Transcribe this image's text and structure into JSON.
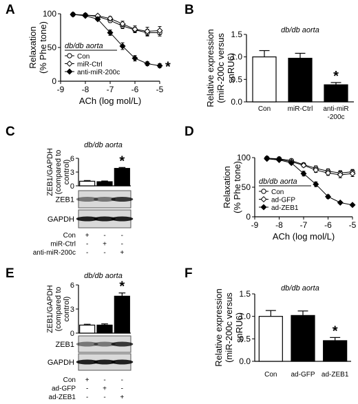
{
  "chart_data": [
    {
      "panel": "A",
      "type": "line",
      "title": "db/db aorta",
      "xlabel": "ACh (log mol/L)",
      "ylabel": "Relaxation (% Phe tone)",
      "xlim": [
        -9,
        -5
      ],
      "ylim": [
        0,
        100
      ],
      "xticks": [
        "-9",
        "-8",
        "-7",
        "-6",
        "-5"
      ],
      "yticks": [
        "0",
        "50",
        "100"
      ],
      "x": [
        -8.5,
        -8,
        -7.5,
        -7,
        -6.5,
        -6,
        -5.5,
        -5
      ],
      "series": [
        {
          "name": "Con",
          "marker": "open-circle",
          "values": [
            99,
            98,
            96,
            90,
            82,
            76,
            72,
            72
          ],
          "err": [
            1,
            1,
            2,
            3,
            4,
            4,
            5,
            5
          ]
        },
        {
          "name": "miR-Ctrl",
          "marker": "open-diamond",
          "values": [
            99,
            98,
            97,
            93,
            85,
            77,
            74,
            75
          ],
          "err": [
            1,
            1,
            2,
            3,
            4,
            5,
            6,
            6
          ]
        },
        {
          "name": "anti-miR-200c",
          "marker": "filled-diamond",
          "values": [
            99,
            97,
            92,
            72,
            52,
            34,
            26,
            23
          ],
          "err": [
            1,
            1,
            2,
            4,
            5,
            4,
            3,
            3
          ]
        }
      ],
      "significance": {
        "series": "anti-miR-200c",
        "mark": "*"
      },
      "legend": "bottom-left"
    },
    {
      "panel": "B",
      "type": "bar",
      "title": "db/db aorta",
      "ylabel": "Relative expression (miR-200c versus snRU6)",
      "ylim": [
        0,
        1.5
      ],
      "yticks": [
        "0.0",
        "0.5",
        "1.0",
        "1.5"
      ],
      "categories": [
        "Con",
        "miR-Ctrl",
        "anti-miR -200c"
      ],
      "values": [
        1.0,
        0.97,
        0.38
      ],
      "err": [
        0.14,
        0.11,
        0.05
      ],
      "fills": [
        "open",
        "filled",
        "filled"
      ],
      "significance": [
        null,
        null,
        "*"
      ]
    },
    {
      "panel": "C",
      "type": "bar",
      "title": "db/db aorta",
      "ylabel": "ZEB1/GAPDH (compared to control)",
      "ylim": [
        0,
        6
      ],
      "yticks": [
        "0",
        "3",
        "6"
      ],
      "values": [
        1.0,
        0.9,
        3.8
      ],
      "err": [
        0.15,
        0.15,
        0.2
      ],
      "fills": [
        "open",
        "filled",
        "filled"
      ],
      "significance": [
        null,
        null,
        "*"
      ],
      "blots": [
        "ZEB1",
        "GAPDH"
      ],
      "conditions": [
        {
          "label": "Con",
          "marks": [
            "+",
            "-",
            "-"
          ]
        },
        {
          "label": "miR-Ctrl",
          "marks": [
            "-",
            "+",
            "-"
          ]
        },
        {
          "label": "anti-miR-200c",
          "marks": [
            "-",
            "-",
            "+"
          ]
        }
      ]
    },
    {
      "panel": "D",
      "type": "line",
      "title": "db/db aorta",
      "xlabel": "ACh (log mol/L)",
      "ylabel": "Relaxation (% Phe tone)",
      "xlim": [
        -9,
        -5
      ],
      "ylim": [
        0,
        100
      ],
      "xticks": [
        "-9",
        "-8",
        "-7",
        "-6",
        "-5"
      ],
      "yticks": [
        "0",
        "50",
        "100"
      ],
      "x": [
        -8.5,
        -8,
        -7.5,
        -7,
        -6.5,
        -6,
        -5.5,
        -5
      ],
      "series": [
        {
          "name": "Con",
          "marker": "open-circle",
          "values": [
            99,
            98,
            95,
            88,
            82,
            77,
            74,
            76
          ],
          "err": [
            1,
            1,
            2,
            3,
            4,
            4,
            4,
            4
          ]
        },
        {
          "name": "ad-GFP",
          "marker": "open-diamond",
          "values": [
            99,
            97,
            93,
            87,
            79,
            74,
            71,
            73
          ],
          "err": [
            1,
            1,
            2,
            3,
            4,
            4,
            5,
            5
          ]
        },
        {
          "name": "ad-ZEB1",
          "marker": "filled-diamond",
          "values": [
            98,
            96,
            91,
            73,
            55,
            34,
            24,
            20
          ],
          "err": [
            1,
            1,
            2,
            4,
            4,
            3,
            2,
            2
          ]
        }
      ],
      "significance": {
        "series": "ad-ZEB1",
        "mark": "*"
      },
      "legend": "bottom-left"
    },
    {
      "panel": "E",
      "type": "bar",
      "title": "db/db aorta",
      "ylabel": "ZEB1/GAPDH (compared to control)",
      "ylim": [
        0,
        6
      ],
      "yticks": [
        "0",
        "3",
        "6"
      ],
      "values": [
        1.0,
        1.0,
        4.6
      ],
      "err": [
        0.1,
        0.15,
        0.4
      ],
      "fills": [
        "open",
        "filled",
        "filled"
      ],
      "significance": [
        null,
        null,
        "*"
      ],
      "blots": [
        "ZEB1",
        "GAPDH"
      ],
      "conditions": [
        {
          "label": "Con",
          "marks": [
            "+",
            "-",
            "-"
          ]
        },
        {
          "label": "ad-GFP",
          "marks": [
            "-",
            "+",
            "-"
          ]
        },
        {
          "label": "ad-ZEB1",
          "marks": [
            "-",
            "-",
            "+"
          ]
        }
      ]
    },
    {
      "panel": "F",
      "type": "bar",
      "title": "db/db aorta",
      "ylabel": "Relative expression (miR-200c versus snRU6)",
      "ylim": [
        0,
        1.5
      ],
      "yticks": [
        "0.0",
        "0.5",
        "1.0",
        "1.5"
      ],
      "categories": [
        "Con",
        "ad-GFP",
        "ad-ZEB1"
      ],
      "values": [
        1.0,
        1.02,
        0.46
      ],
      "err": [
        0.13,
        0.1,
        0.07
      ],
      "fills": [
        "open",
        "filled",
        "filled"
      ],
      "significance": [
        null,
        null,
        "*"
      ]
    }
  ]
}
